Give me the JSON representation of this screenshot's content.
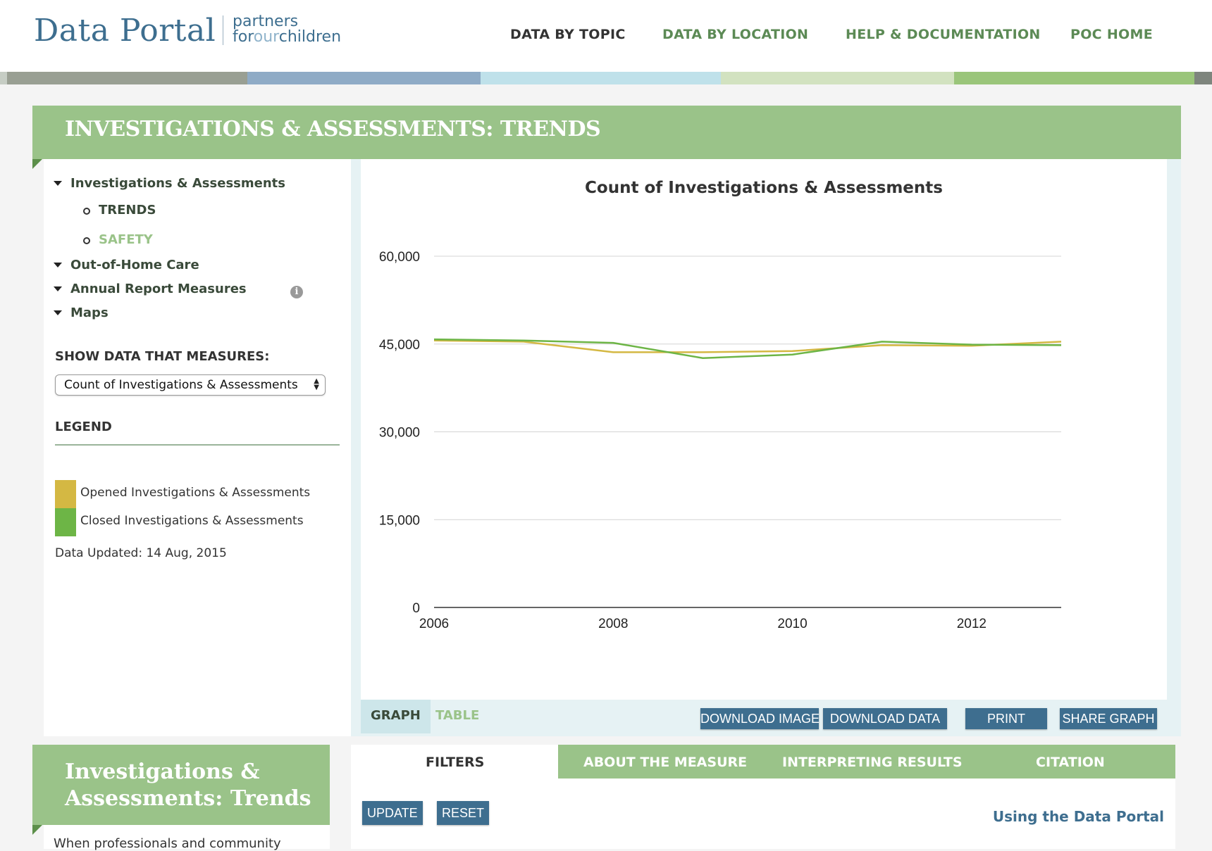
{
  "header": {
    "logo": "Data Portal",
    "partner_line1": "partners",
    "partner_line2_a": "for",
    "partner_line2_b": "our",
    "partner_line2_c": "children",
    "nav": [
      "DATA BY TOPIC",
      "DATA BY LOCATION",
      "HELP & DOCUMENTATION",
      "POC HOME"
    ]
  },
  "stripe_colors": [
    "#c6cdc4",
    "#999f93",
    "#8fabc6",
    "#bfe1ea",
    "#d2e2c0",
    "#9ac57a",
    "#7e857d"
  ],
  "page_title": "INVESTIGATIONS & ASSESSMENTS: TRENDS",
  "sidebar": {
    "items": [
      {
        "label": "Investigations & Assessments",
        "children": [
          {
            "label": "TRENDS"
          },
          {
            "label": "SAFETY"
          }
        ]
      },
      {
        "label": "Out-of-Home Care"
      },
      {
        "label": "Annual Report Measures"
      },
      {
        "label": "Maps"
      }
    ],
    "info_icon": "i",
    "measure_label": "SHOW DATA THAT MEASURES:",
    "measure_value": "Count of Investigations & Assessments",
    "legend_label": "LEGEND",
    "legend": [
      {
        "label": "Opened Investigations & Assessments",
        "color": "#d4b843"
      },
      {
        "label": "Closed Investigations & Assessments",
        "color": "#6db546"
      }
    ],
    "updated": "Data Updated: 14 Aug, 2015"
  },
  "chart_data": {
    "type": "line",
    "title": "Count of Investigations & Assessments",
    "xlim": [
      2006,
      2013
    ],
    "ylim": [
      0,
      60000
    ],
    "yticks": [
      0,
      15000,
      30000,
      45000,
      60000
    ],
    "ytick_labels": [
      "0",
      "15,000",
      "30,000",
      "45,000",
      "60,000"
    ],
    "xticks": [
      2006,
      2008,
      2010,
      2012
    ],
    "xtick_labels": [
      "2006",
      "2008",
      "2010",
      "2012"
    ],
    "grid": true,
    "series": [
      {
        "color": "#d4b843",
        "x": [
          2006,
          2007,
          2008,
          2009,
          2010,
          2011,
          2012,
          2013
        ],
        "values": [
          45600,
          45400,
          43600,
          43600,
          43800,
          44800,
          44700,
          45400
        ]
      },
      {
        "color": "#6db546",
        "x": [
          2006,
          2007,
          2008,
          2009,
          2010,
          2011,
          2012,
          2013
        ],
        "values": [
          45800,
          45600,
          45200,
          42600,
          43200,
          45400,
          44900,
          44800
        ]
      }
    ]
  },
  "chart_tabs": {
    "graph": "GRAPH",
    "table": "TABLE"
  },
  "chart_buttons": {
    "download_image": "DOWNLOAD IMAGE",
    "download_data": "DOWNLOAD DATA",
    "print": "PRINT",
    "share": "SHARE GRAPH"
  },
  "bottom": {
    "title_line1": "Investigations &",
    "title_line2": "Assessments: Trends",
    "description": "When professionals and community",
    "tabs": [
      "FILTERS",
      "ABOUT THE MEASURE",
      "INTERPRETING RESULTS",
      "CITATION"
    ],
    "update_label": "UPDATE",
    "reset_label": "RESET",
    "help_link": "Using the Data Portal"
  }
}
